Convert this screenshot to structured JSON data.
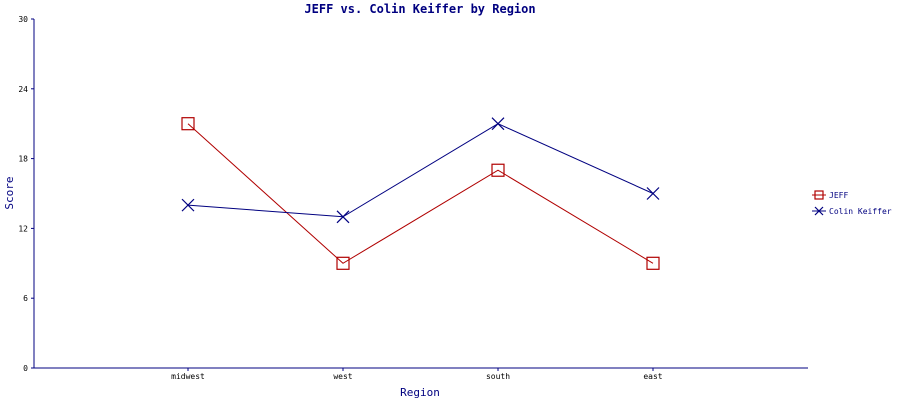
{
  "chart_data": {
    "type": "line",
    "title": "JEFF vs. Colin Keiffer by Region",
    "xlabel": "Region",
    "ylabel": "Score",
    "categories": [
      "midwest",
      "west",
      "south",
      "east"
    ],
    "ylim": [
      0,
      30
    ],
    "yticks": [
      0,
      6,
      12,
      18,
      24,
      30
    ],
    "grid": false,
    "legend_position": "right",
    "series": [
      {
        "name": "JEFF",
        "values": [
          21,
          9,
          17,
          9
        ],
        "color": "#b00000",
        "marker": "square"
      },
      {
        "name": "Colin Keiffer",
        "values": [
          14,
          13,
          21,
          15
        ],
        "color": "#000080",
        "marker": "x"
      }
    ]
  }
}
